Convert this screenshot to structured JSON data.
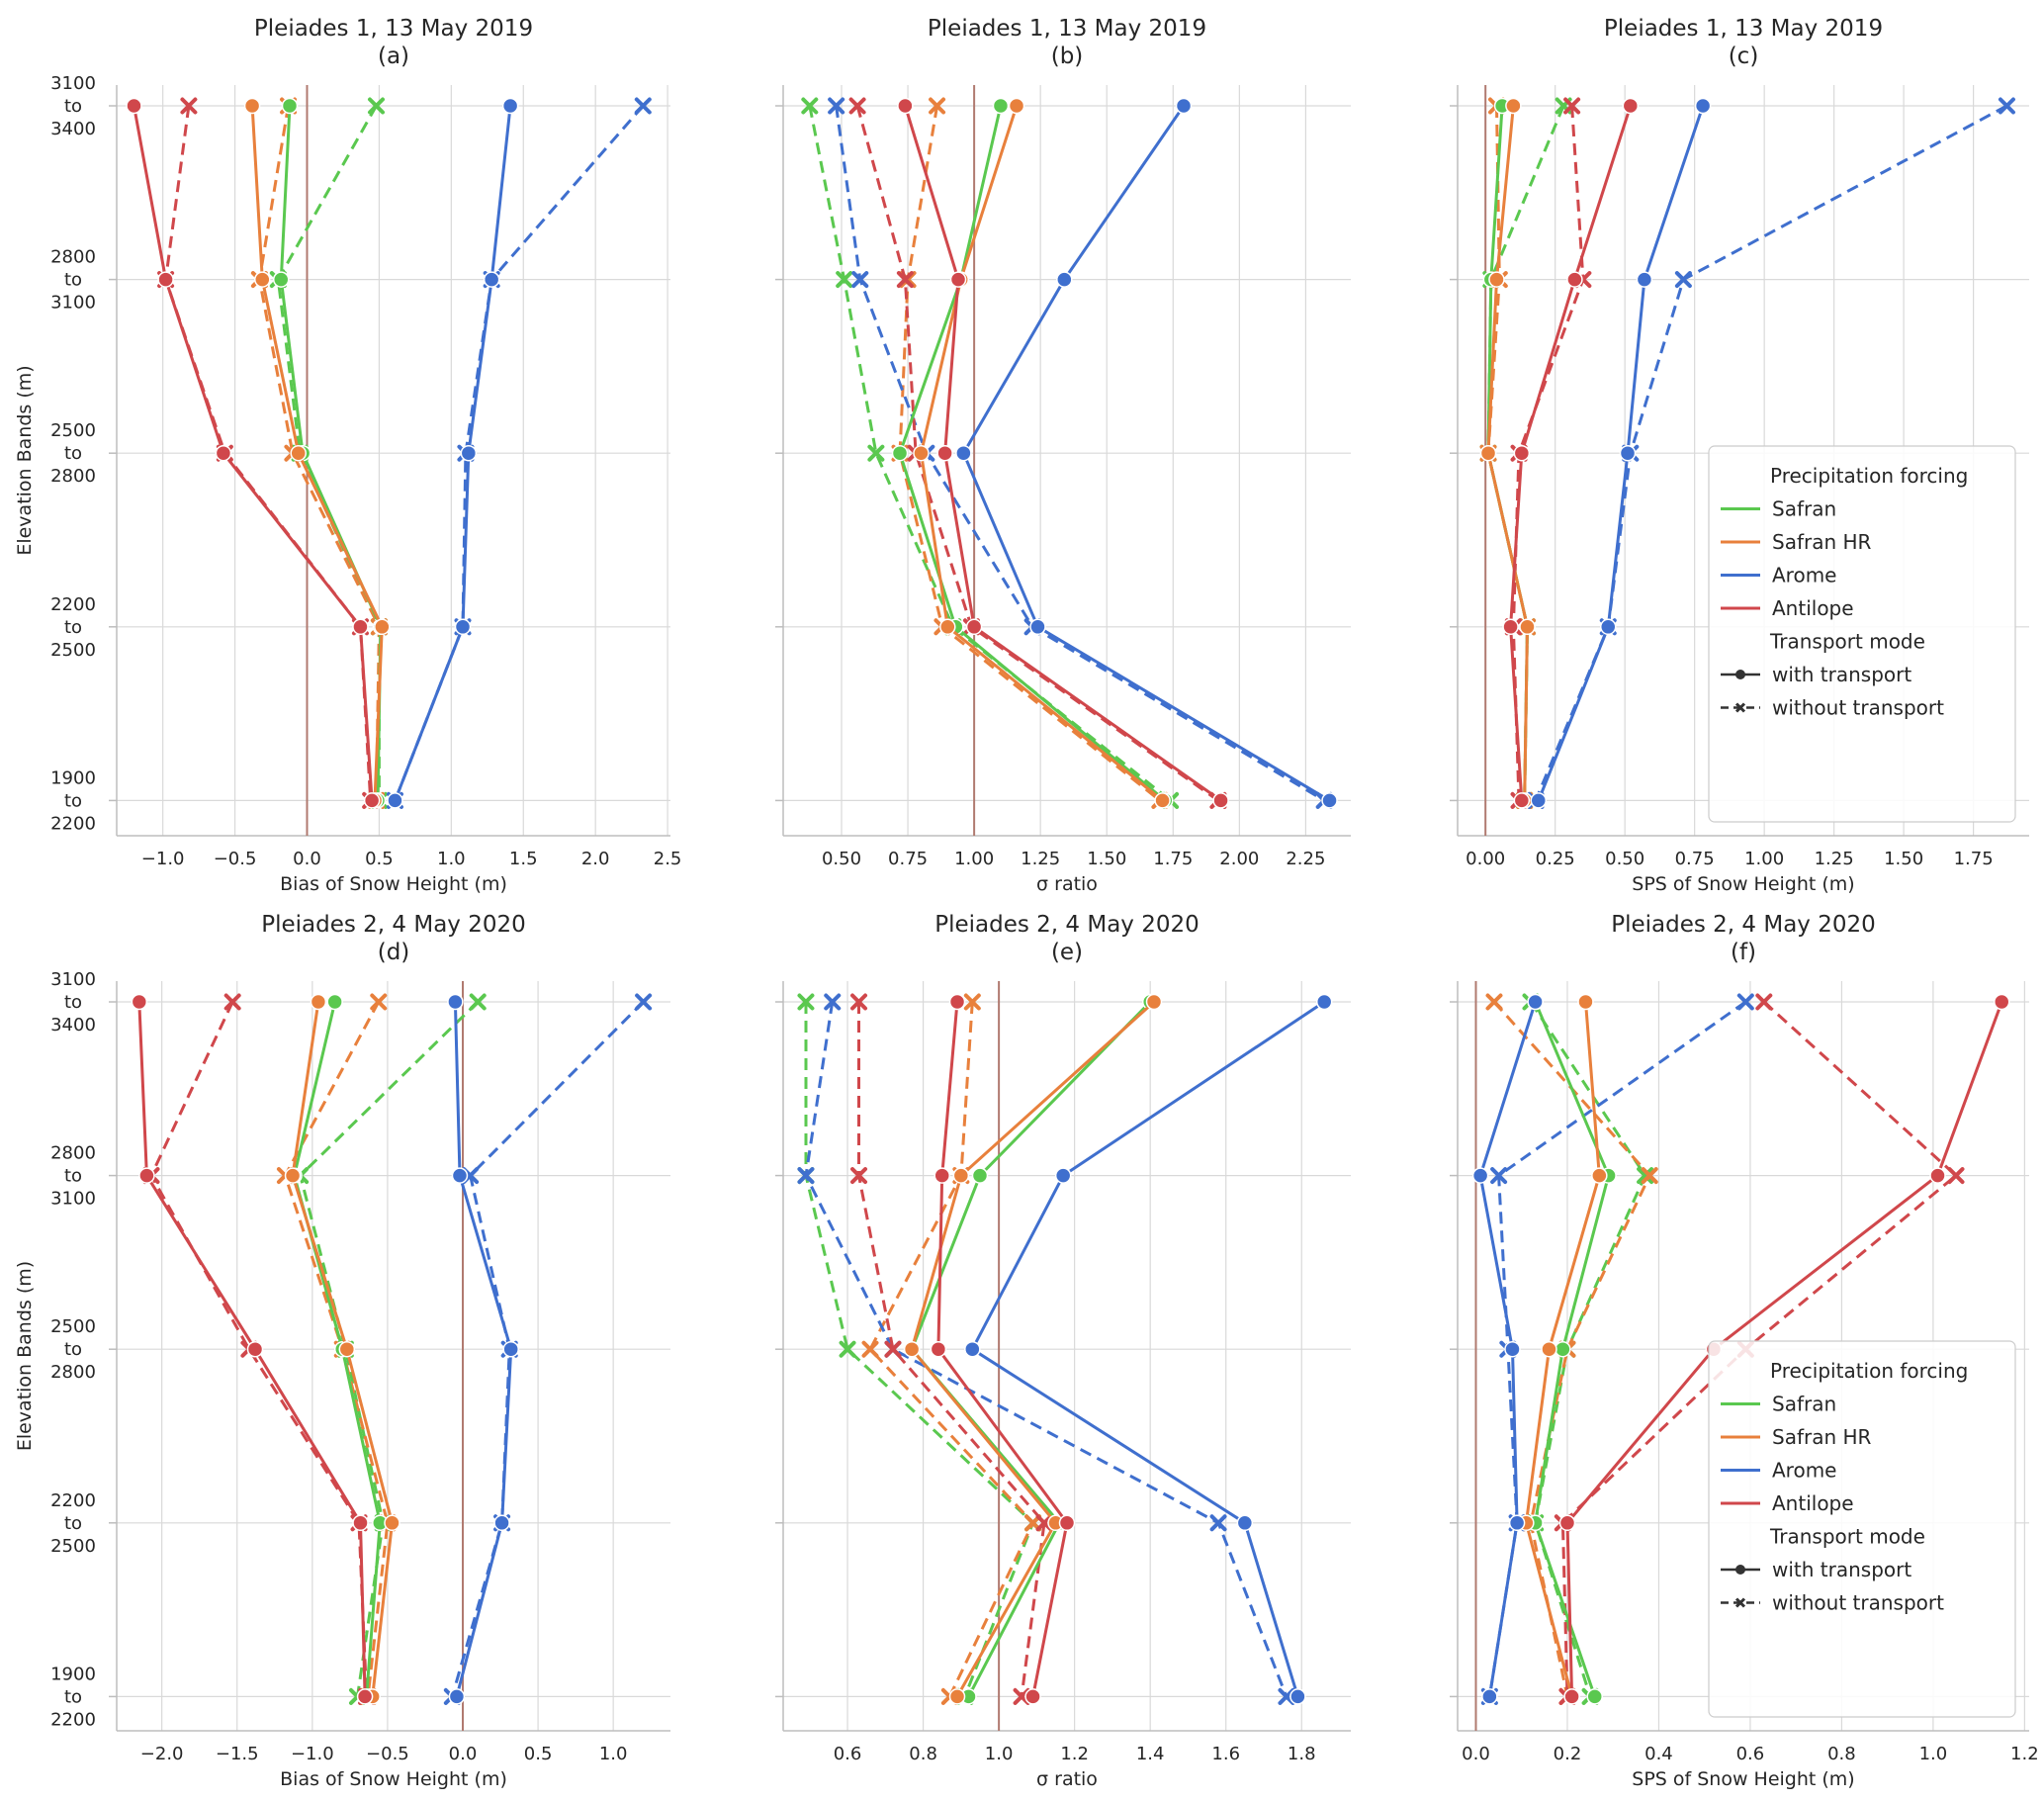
{
  "chart_data": [
    {
      "type": "line",
      "title_line1": "Pleiades 1, 13 May 2019",
      "title_line2": "(a)",
      "xlabel": "Bias of Snow Height (m)",
      "ylabel": "Elevation Bands (m)",
      "xlim": [
        -1.32,
        2.52
      ],
      "xticks": [
        -1.0,
        -0.5,
        0.0,
        0.5,
        1.0,
        1.5,
        2.0,
        2.5
      ],
      "xtick_labels": [
        "−1.0",
        "−0.5",
        "0.0",
        "0.5",
        "1.0",
        "1.5",
        "2.0",
        "2.5"
      ],
      "reference_x": 0,
      "y_categories": [
        "3100 to 3400",
        "2800 to 3100",
        "2500 to 2800",
        "2200 to 2500",
        "1900 to 2200"
      ],
      "series": [
        {
          "name": "Safran",
          "mode": "with transport",
          "values": [
            -0.12,
            -0.18,
            -0.03,
            0.51,
            0.49
          ]
        },
        {
          "name": "Safran",
          "mode": "without transport",
          "values": [
            0.48,
            -0.2,
            -0.05,
            0.5,
            0.5
          ]
        },
        {
          "name": "Safran HR",
          "mode": "with transport",
          "values": [
            -0.38,
            -0.31,
            -0.06,
            0.52,
            0.47
          ]
        },
        {
          "name": "Safran HR",
          "mode": "without transport",
          "values": [
            -0.13,
            -0.33,
            -0.1,
            0.5,
            0.48
          ]
        },
        {
          "name": "Arome",
          "mode": "with transport",
          "values": [
            1.41,
            1.28,
            1.12,
            1.08,
            0.61
          ]
        },
        {
          "name": "Arome",
          "mode": "without transport",
          "values": [
            2.33,
            1.28,
            1.1,
            1.08,
            0.61
          ]
        },
        {
          "name": "Antilope",
          "mode": "with transport",
          "values": [
            -1.2,
            -0.98,
            -0.58,
            0.37,
            0.45
          ]
        },
        {
          "name": "Antilope",
          "mode": "without transport",
          "values": [
            -0.82,
            -0.98,
            -0.57,
            0.37,
            0.44
          ]
        }
      ]
    },
    {
      "type": "line",
      "title_line1": "Pleiades 1, 13 May 2019",
      "title_line2": "(b)",
      "xlabel": "σ ratio",
      "xlim": [
        0.28,
        2.42
      ],
      "xticks": [
        0.5,
        0.75,
        1.0,
        1.25,
        1.5,
        1.75,
        2.0,
        2.25
      ],
      "xtick_labels": [
        "0.50",
        "0.75",
        "1.00",
        "1.25",
        "1.50",
        "1.75",
        "2.00",
        "2.25"
      ],
      "reference_x": 1,
      "y_categories": [
        "3100 to 3400",
        "2800 to 3100",
        "2500 to 2800",
        "2200 to 2500",
        "1900 to 2200"
      ],
      "series": [
        {
          "name": "Safran",
          "mode": "with transport",
          "values": [
            1.1,
            0.95,
            0.72,
            0.93,
            1.72
          ]
        },
        {
          "name": "Safran",
          "mode": "without transport",
          "values": [
            0.38,
            0.51,
            0.63,
            0.92,
            1.74
          ]
        },
        {
          "name": "Safran HR",
          "mode": "with transport",
          "values": [
            1.16,
            0.95,
            0.8,
            0.9,
            1.71
          ]
        },
        {
          "name": "Safran HR",
          "mode": "without transport",
          "values": [
            0.86,
            0.75,
            0.72,
            0.88,
            1.7
          ]
        },
        {
          "name": "Arome",
          "mode": "with transport",
          "values": [
            1.79,
            1.34,
            0.96,
            1.24,
            2.34
          ]
        },
        {
          "name": "Arome",
          "mode": "without transport",
          "values": [
            0.48,
            0.57,
            0.82,
            1.22,
            2.32
          ]
        },
        {
          "name": "Antilope",
          "mode": "with transport",
          "values": [
            0.74,
            0.94,
            0.89,
            1.0,
            1.93
          ]
        },
        {
          "name": "Antilope",
          "mode": "without transport",
          "values": [
            0.56,
            0.74,
            0.78,
            0.99,
            1.92
          ]
        }
      ]
    },
    {
      "type": "line",
      "title_line1": "Pleiades 1, 13 May 2019",
      "title_line2": "(c)",
      "xlabel": "SPS of Snow Height (m)",
      "xlim": [
        -0.1,
        1.95
      ],
      "xticks": [
        0.0,
        0.25,
        0.5,
        0.75,
        1.0,
        1.25,
        1.5,
        1.75
      ],
      "xtick_labels": [
        "0.00",
        "0.25",
        "0.50",
        "0.75",
        "1.00",
        "1.25",
        "1.50",
        "1.75"
      ],
      "reference_x": 0,
      "y_categories": [
        "3100 to 3400",
        "2800 to 3100",
        "2500 to 2800",
        "2200 to 2500",
        "1900 to 2200"
      ],
      "series": [
        {
          "name": "Safran",
          "mode": "with transport",
          "values": [
            0.06,
            0.02,
            0.01,
            0.15,
            0.14
          ]
        },
        {
          "name": "Safran",
          "mode": "without transport",
          "values": [
            0.28,
            0.02,
            0.01,
            0.15,
            0.14
          ]
        },
        {
          "name": "Safran HR",
          "mode": "with transport",
          "values": [
            0.1,
            0.04,
            0.01,
            0.15,
            0.14
          ]
        },
        {
          "name": "Safran HR",
          "mode": "without transport",
          "values": [
            0.04,
            0.05,
            0.01,
            0.15,
            0.14
          ]
        },
        {
          "name": "Arome",
          "mode": "with transport",
          "values": [
            0.78,
            0.57,
            0.51,
            0.44,
            0.19
          ]
        },
        {
          "name": "Arome",
          "mode": "without transport",
          "values": [
            1.87,
            0.71,
            0.52,
            0.44,
            0.18
          ]
        },
        {
          "name": "Antilope",
          "mode": "with transport",
          "values": [
            0.52,
            0.32,
            0.13,
            0.09,
            0.13
          ]
        },
        {
          "name": "Antilope",
          "mode": "without transport",
          "values": [
            0.31,
            0.35,
            0.12,
            0.1,
            0.12
          ]
        }
      ],
      "legend": "bottom-right"
    },
    {
      "type": "line",
      "title_line1": "Pleiades 2, 4 May 2020",
      "title_line2": "(d)",
      "xlabel": "Bias of Snow Height (m)",
      "ylabel": "Elevation Bands (m)",
      "xlim": [
        -2.3,
        1.38
      ],
      "xticks": [
        -2.0,
        -1.5,
        -1.0,
        -0.5,
        0.0,
        0.5,
        1.0
      ],
      "xtick_labels": [
        "−2.0",
        "−1.5",
        "−1.0",
        "−0.5",
        "0.0",
        "0.5",
        "1.0"
      ],
      "reference_x": 0,
      "y_categories": [
        "3100 to 3400",
        "2800 to 3100",
        "2500 to 2800",
        "2200 to 2500",
        "1900 to 2200"
      ],
      "series": [
        {
          "name": "Safran",
          "mode": "with transport",
          "values": [
            -0.85,
            -1.12,
            -0.8,
            -0.55,
            -0.64
          ]
        },
        {
          "name": "Safran",
          "mode": "without transport",
          "values": [
            0.1,
            -1.08,
            -0.78,
            -0.53,
            -0.7
          ]
        },
        {
          "name": "Safran HR",
          "mode": "with transport",
          "values": [
            -0.96,
            -1.13,
            -0.77,
            -0.47,
            -0.6
          ]
        },
        {
          "name": "Safran HR",
          "mode": "without transport",
          "values": [
            -0.56,
            -1.18,
            -0.8,
            -0.5,
            -0.63
          ]
        },
        {
          "name": "Arome",
          "mode": "with transport",
          "values": [
            -0.05,
            -0.02,
            0.32,
            0.26,
            -0.04
          ]
        },
        {
          "name": "Arome",
          "mode": "without transport",
          "values": [
            1.2,
            0.05,
            0.31,
            0.26,
            -0.07
          ]
        },
        {
          "name": "Antilope",
          "mode": "with transport",
          "values": [
            -2.15,
            -2.1,
            -1.38,
            -0.68,
            -0.65
          ]
        },
        {
          "name": "Antilope",
          "mode": "without transport",
          "values": [
            -1.53,
            -2.07,
            -1.42,
            -0.69,
            -0.64
          ]
        }
      ]
    },
    {
      "type": "line",
      "title_line1": "Pleiades 2, 4 May 2020",
      "title_line2": "(e)",
      "xlabel": "σ ratio",
      "xlim": [
        0.43,
        1.93
      ],
      "xticks": [
        0.6,
        0.8,
        1.0,
        1.2,
        1.4,
        1.6,
        1.8
      ],
      "xtick_labels": [
        "0.6",
        "0.8",
        "1.0",
        "1.2",
        "1.4",
        "1.6",
        "1.8"
      ],
      "reference_x": 1,
      "y_categories": [
        "3100 to 3400",
        "2800 to 3100",
        "2500 to 2800",
        "2200 to 2500",
        "1900 to 2200"
      ],
      "series": [
        {
          "name": "Safran",
          "mode": "with transport",
          "values": [
            1.4,
            0.95,
            0.77,
            1.16,
            0.92
          ]
        },
        {
          "name": "Safran",
          "mode": "without transport",
          "values": [
            0.49,
            0.49,
            0.6,
            1.09,
            0.91
          ]
        },
        {
          "name": "Safran HR",
          "mode": "with transport",
          "values": [
            1.41,
            0.9,
            0.77,
            1.15,
            0.89
          ]
        },
        {
          "name": "Safran HR",
          "mode": "without transport",
          "values": [
            0.93,
            0.9,
            0.66,
            1.09,
            0.87
          ]
        },
        {
          "name": "Arome",
          "mode": "with transport",
          "values": [
            1.86,
            1.17,
            0.93,
            1.65,
            1.79
          ]
        },
        {
          "name": "Arome",
          "mode": "without transport",
          "values": [
            0.56,
            0.49,
            0.72,
            1.58,
            1.76
          ]
        },
        {
          "name": "Antilope",
          "mode": "with transport",
          "values": [
            0.89,
            0.85,
            0.84,
            1.18,
            1.09
          ]
        },
        {
          "name": "Antilope",
          "mode": "without transport",
          "values": [
            0.63,
            0.63,
            0.72,
            1.12,
            1.06
          ]
        }
      ]
    },
    {
      "type": "line",
      "title_line1": "Pleiades 2, 4 May 2020",
      "title_line2": "(f)",
      "xlabel": "SPS of Snow Height (m)",
      "xlim": [
        -0.04,
        1.21
      ],
      "xticks": [
        0.0,
        0.2,
        0.4,
        0.6,
        0.8,
        1.0,
        1.2
      ],
      "xtick_labels": [
        "0.0",
        "0.2",
        "0.4",
        "0.6",
        "0.8",
        "1.0",
        "1.2"
      ],
      "reference_x": 0,
      "y_categories": [
        "3100 to 3400",
        "2800 to 3100",
        "2500 to 2800",
        "2200 to 2500",
        "1900 to 2200"
      ],
      "series": [
        {
          "name": "Safran",
          "mode": "with transport",
          "values": [
            0.13,
            0.29,
            0.19,
            0.13,
            0.26
          ]
        },
        {
          "name": "Safran",
          "mode": "without transport",
          "values": [
            0.12,
            0.37,
            0.2,
            0.13,
            0.25
          ]
        },
        {
          "name": "Safran HR",
          "mode": "with transport",
          "values": [
            0.24,
            0.27,
            0.16,
            0.11,
            0.21
          ]
        },
        {
          "name": "Safran HR",
          "mode": "without transport",
          "values": [
            0.04,
            0.38,
            0.2,
            0.12,
            0.2
          ]
        },
        {
          "name": "Arome",
          "mode": "with transport",
          "values": [
            0.13,
            0.01,
            0.08,
            0.09,
            0.03
          ]
        },
        {
          "name": "Arome",
          "mode": "without transport",
          "values": [
            0.59,
            0.05,
            0.07,
            0.09,
            0.03
          ]
        },
        {
          "name": "Antilope",
          "mode": "with transport",
          "values": [
            1.15,
            1.01,
            0.52,
            0.2,
            0.21
          ]
        },
        {
          "name": "Antilope",
          "mode": "without transport",
          "values": [
            0.63,
            1.05,
            0.59,
            0.19,
            0.2
          ]
        }
      ],
      "legend": "bottom-right"
    }
  ],
  "elevation_band_labels": [
    [
      "3100",
      "to",
      "3400"
    ],
    [
      "2800",
      "to",
      "3100"
    ],
    [
      "2500",
      "to",
      "2800"
    ],
    [
      "2200",
      "to",
      "2500"
    ],
    [
      "1900",
      "to",
      "2200"
    ]
  ],
  "legend": {
    "group1_title": "Precipitation forcing",
    "forcings": [
      {
        "name": "Safran",
        "color": "#5ac84f"
      },
      {
        "name": "Safran HR",
        "color": "#e8803c"
      },
      {
        "name": "Arome",
        "color": "#3f6fce"
      },
      {
        "name": "Antilope",
        "color": "#d0474b"
      }
    ],
    "group2_title": "Transport mode",
    "modes": [
      "with transport",
      "without transport"
    ]
  },
  "colors": {
    "Safran": "#5ac84f",
    "Safran HR": "#e8803c",
    "Arome": "#3f6fce",
    "Antilope": "#d0474b",
    "reference_line": "#b07a70"
  }
}
